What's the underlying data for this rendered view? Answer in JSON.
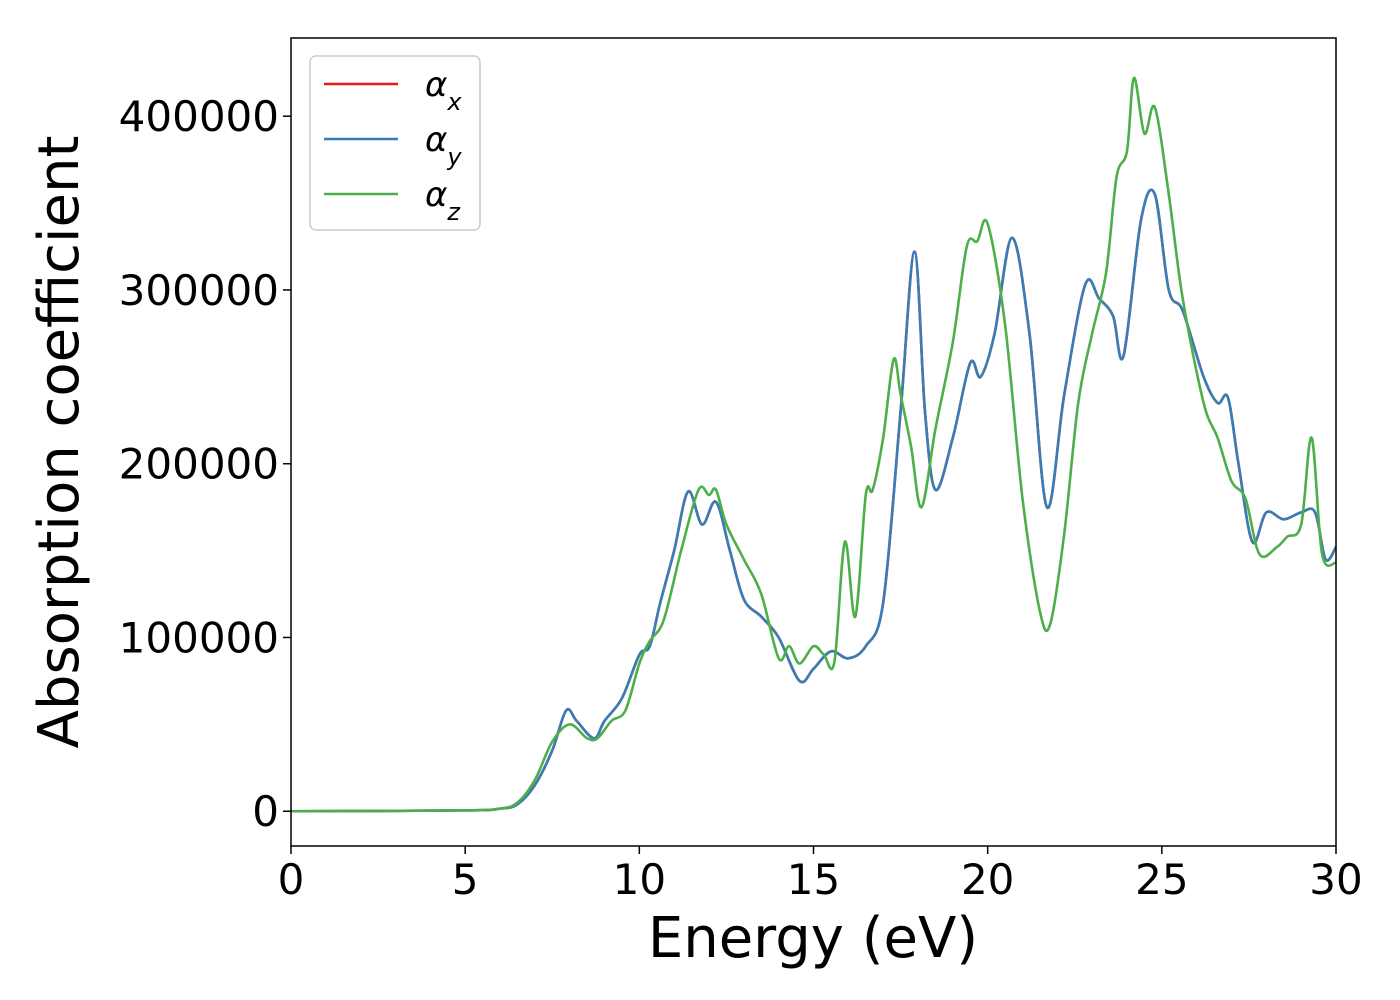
{
  "chart_data": {
    "type": "line",
    "title": "",
    "xlabel": "Energy (eV)",
    "ylabel": "Absorption coefficient",
    "xlim": [
      0,
      30
    ],
    "ylim": [
      -20000,
      445000
    ],
    "xticks": [
      0,
      5,
      10,
      15,
      20,
      25,
      30
    ],
    "xtick_labels": [
      "0",
      "5",
      "10",
      "15",
      "20",
      "25",
      "30"
    ],
    "yticks": [
      0,
      100000,
      200000,
      300000,
      400000
    ],
    "ytick_labels": [
      "0",
      "100000",
      "200000",
      "300000",
      "400000"
    ],
    "grid": false,
    "legend": {
      "position": "top-left"
    },
    "series": [
      {
        "name": "αx",
        "symbol": "α",
        "subscript": "x",
        "color": "#e41a1c",
        "x": [
          0,
          5,
          6,
          6.5,
          7,
          7.5,
          7.9,
          8.2,
          8.7,
          9.0,
          9.5,
          10.0,
          10.3,
          10.6,
          11.0,
          11.4,
          11.8,
          12.2,
          12.6,
          13.0,
          13.5,
          14.0,
          14.6,
          15.0,
          15.5,
          16.0,
          16.5,
          17.0,
          17.5,
          17.9,
          18.2,
          18.5,
          19.0,
          19.5,
          19.8,
          20.2,
          20.7,
          21.2,
          21.7,
          22.2,
          22.8,
          23.2,
          23.6,
          23.9,
          24.4,
          24.8,
          25.2,
          25.6,
          26.2,
          26.6,
          26.9,
          27.2,
          27.6,
          28.0,
          28.5,
          29.0,
          29.4,
          29.7,
          30.0
        ],
        "y": [
          0,
          500,
          1500,
          4000,
          15000,
          35000,
          58000,
          52000,
          42000,
          52000,
          65000,
          90000,
          95000,
          120000,
          150000,
          184000,
          165000,
          178000,
          150000,
          122000,
          112000,
          100000,
          75000,
          82000,
          92000,
          88000,
          95000,
          120000,
          230000,
          322000,
          230000,
          185000,
          215000,
          258000,
          250000,
          275000,
          330000,
          275000,
          175000,
          240000,
          303000,
          295000,
          285000,
          262000,
          340000,
          355000,
          300000,
          288000,
          250000,
          235000,
          238000,
          200000,
          155000,
          172000,
          168000,
          172000,
          172000,
          145000,
          152000
        ]
      },
      {
        "name": "αy",
        "symbol": "α",
        "subscript": "y",
        "color": "#377eb8",
        "x": [
          0,
          5,
          6,
          6.5,
          7,
          7.5,
          7.9,
          8.2,
          8.7,
          9.0,
          9.5,
          10.0,
          10.3,
          10.6,
          11.0,
          11.4,
          11.8,
          12.2,
          12.6,
          13.0,
          13.5,
          14.0,
          14.6,
          15.0,
          15.5,
          16.0,
          16.5,
          17.0,
          17.5,
          17.9,
          18.2,
          18.5,
          19.0,
          19.5,
          19.8,
          20.2,
          20.7,
          21.2,
          21.7,
          22.2,
          22.8,
          23.2,
          23.6,
          23.9,
          24.4,
          24.8,
          25.2,
          25.6,
          26.2,
          26.6,
          26.9,
          27.2,
          27.6,
          28.0,
          28.5,
          29.0,
          29.4,
          29.7,
          30.0
        ],
        "y": [
          0,
          500,
          1500,
          4000,
          15000,
          35000,
          58000,
          52000,
          42000,
          52000,
          65000,
          90000,
          95000,
          120000,
          150000,
          184000,
          165000,
          178000,
          150000,
          122000,
          112000,
          100000,
          75000,
          82000,
          92000,
          88000,
          95000,
          120000,
          230000,
          322000,
          230000,
          185000,
          215000,
          258000,
          250000,
          275000,
          330000,
          275000,
          175000,
          240000,
          303000,
          295000,
          285000,
          262000,
          340000,
          355000,
          300000,
          288000,
          250000,
          235000,
          238000,
          200000,
          155000,
          172000,
          168000,
          172000,
          172000,
          145000,
          152000
        ]
      },
      {
        "name": "αz",
        "symbol": "α",
        "subscript": "z",
        "color": "#4daf4a",
        "x": [
          0,
          5,
          6,
          6.5,
          7,
          7.5,
          8.0,
          8.5,
          8.8,
          9.2,
          9.6,
          10.0,
          10.3,
          10.7,
          11.2,
          11.7,
          12.0,
          12.2,
          12.5,
          13.0,
          13.5,
          14.0,
          14.3,
          14.6,
          15.0,
          15.3,
          15.6,
          15.9,
          16.2,
          16.5,
          16.7,
          17.0,
          17.3,
          17.5,
          17.8,
          18.1,
          18.5,
          19.0,
          19.4,
          19.7,
          20.0,
          20.5,
          21.0,
          21.5,
          21.8,
          22.2,
          22.6,
          23.0,
          23.4,
          23.7,
          24.0,
          24.2,
          24.5,
          24.8,
          25.2,
          25.6,
          26.2,
          26.6,
          27.0,
          27.4,
          27.8,
          28.3,
          28.6,
          29.0,
          29.3,
          29.6,
          30.0
        ],
        "y": [
          0,
          500,
          1500,
          5000,
          18000,
          40000,
          50000,
          42000,
          42000,
          52000,
          58000,
          85000,
          98000,
          110000,
          150000,
          185000,
          182000,
          185000,
          165000,
          145000,
          125000,
          88000,
          95000,
          85000,
          95000,
          90000,
          86000,
          155000,
          112000,
          182000,
          185000,
          215000,
          260000,
          240000,
          210000,
          175000,
          220000,
          270000,
          325000,
          328000,
          338000,
          280000,
          180000,
          115000,
          108000,
          160000,
          235000,
          275000,
          310000,
          365000,
          380000,
          422000,
          390000,
          405000,
          355000,
          295000,
          235000,
          215000,
          190000,
          180000,
          148000,
          152000,
          158000,
          165000,
          215000,
          148000,
          143000
        ]
      }
    ]
  }
}
